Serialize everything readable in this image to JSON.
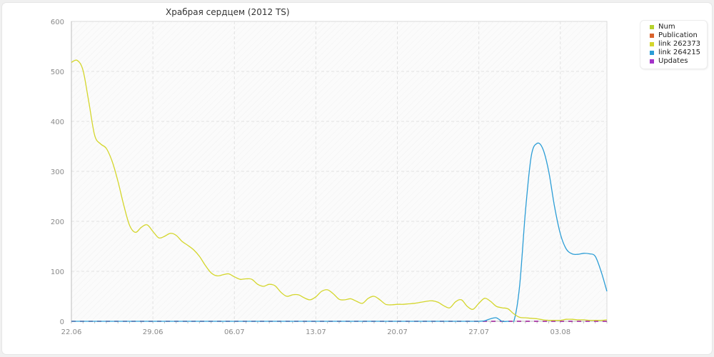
{
  "chart_data": {
    "type": "line",
    "title": "Храбрая сердцем (2012 TS)",
    "xlabel": "",
    "ylabel": "",
    "ylim": [
      0,
      600
    ],
    "yticks": [
      "0",
      "100",
      "200",
      "300",
      "400",
      "500",
      "600"
    ],
    "xticks": [
      "22.06",
      "29.06",
      "06.07",
      "13.07",
      "20.07",
      "27.07",
      "03.08"
    ],
    "grid": true,
    "legend_position": "top-right",
    "x_days": [
      0,
      0.5,
      1,
      1.5,
      2,
      2.5,
      3,
      3.5,
      4,
      4.5,
      5,
      5.5,
      6,
      6.5,
      7,
      7.5,
      8,
      8.5,
      9,
      9.5,
      10,
      10.5,
      11,
      11.5,
      12,
      12.5,
      13,
      13.5,
      14,
      14.5,
      15,
      15.5,
      16,
      16.5,
      17,
      17.5,
      18,
      18.5,
      19,
      19.5,
      20,
      20.5,
      21,
      21.5,
      22,
      22.5,
      23,
      23.5,
      24,
      24.5,
      25,
      25.5,
      26,
      26.5,
      27,
      27.5,
      28,
      28.5,
      29,
      29.5,
      30,
      30.5,
      31,
      31.5,
      32,
      32.5,
      33,
      33.5,
      34,
      34.5,
      35,
      35.5,
      36,
      36.5,
      37,
      37.5,
      38,
      38.5,
      39,
      39.5,
      40,
      40.5,
      41,
      41.5,
      42,
      42.5,
      43,
      43.5,
      44,
      44.5,
      45,
      45.5,
      46
    ],
    "series": [
      {
        "name": "Num",
        "color": "#b6d22e",
        "values": [
          0,
          0,
          0,
          0,
          0,
          0,
          0,
          0,
          0,
          0,
          0,
          0,
          0,
          0,
          0,
          0,
          0,
          0,
          0,
          0,
          0,
          0,
          0,
          0,
          0,
          0,
          0,
          0,
          0,
          0,
          0,
          0,
          0,
          0,
          0,
          0,
          0,
          0,
          0,
          0,
          0,
          0,
          0,
          0,
          0,
          0,
          0,
          0,
          0,
          0,
          0,
          0,
          0,
          0,
          0,
          0,
          0,
          0,
          0,
          0,
          0,
          0,
          0,
          0,
          0,
          0,
          0,
          0,
          0,
          0,
          0,
          0,
          0,
          0,
          0,
          0,
          0,
          0,
          0,
          0,
          0,
          0,
          0,
          0,
          0,
          0,
          0,
          0,
          0,
          0,
          0,
          0,
          0
        ]
      },
      {
        "name": "Publication",
        "color": "#d9622b",
        "values": [
          0,
          0,
          0,
          0,
          0,
          0,
          0,
          0,
          0,
          0,
          0,
          0,
          0,
          0,
          0,
          0,
          0,
          0,
          0,
          0,
          0,
          0,
          0,
          0,
          0,
          0,
          0,
          0,
          0,
          0,
          0,
          0,
          0,
          0,
          0,
          0,
          0,
          0,
          0,
          0,
          0,
          0,
          0,
          0,
          0,
          0,
          0,
          0,
          0,
          0,
          0,
          0,
          0,
          0,
          0,
          0,
          0,
          0,
          0,
          0,
          0,
          0,
          0,
          0,
          0,
          0,
          0,
          0,
          0,
          0,
          0,
          0,
          0,
          0,
          0,
          0,
          0,
          0,
          0,
          0,
          0,
          0,
          0,
          0,
          0,
          0,
          0,
          0,
          0,
          0,
          0,
          0,
          0
        ]
      },
      {
        "name": "link 262373",
        "color": "#d4d62c",
        "values": [
          518,
          522,
          502,
          438,
          372,
          355,
          346,
          320,
          280,
          232,
          192,
          178,
          188,
          193,
          180,
          167,
          170,
          176,
          172,
          160,
          152,
          143,
          130,
          112,
          97,
          91,
          93,
          95,
          89,
          84,
          85,
          84,
          74,
          70,
          74,
          71,
          58,
          50,
          53,
          53,
          47,
          43,
          49,
          60,
          63,
          55,
          44,
          43,
          45,
          40,
          36,
          46,
          50,
          43,
          34,
          33,
          34,
          34,
          35,
          36,
          38,
          40,
          41,
          38,
          31,
          27,
          39,
          43,
          30,
          24,
          36,
          46,
          40,
          30,
          27,
          25,
          15,
          8,
          7,
          6,
          5,
          3,
          2,
          2,
          2,
          4,
          4,
          3,
          3,
          2,
          2,
          2,
          3
        ]
      },
      {
        "name": "link 264215",
        "color": "#2b9dd6",
        "values": [
          0,
          0,
          0,
          0,
          0,
          0,
          0,
          0,
          0,
          0,
          0,
          0,
          0,
          0,
          0,
          0,
          0,
          0,
          0,
          0,
          0,
          0,
          0,
          0,
          0,
          0,
          0,
          0,
          0,
          0,
          0,
          0,
          0,
          0,
          0,
          0,
          0,
          0,
          0,
          0,
          0,
          0,
          0,
          0,
          0,
          0,
          0,
          0,
          0,
          0,
          0,
          0,
          0,
          0,
          0,
          0,
          0,
          0,
          0,
          0,
          0,
          0,
          0,
          0,
          0,
          0,
          0,
          0,
          0,
          0,
          0,
          1,
          5,
          7,
          0,
          0,
          0,
          70,
          220,
          330,
          356,
          345,
          300,
          230,
          175,
          145,
          135,
          134,
          136,
          135,
          130,
          100,
          60
        ]
      },
      {
        "name": "Updates",
        "color": "#a433c9",
        "values": [
          0,
          0,
          0,
          0,
          0,
          0,
          0,
          0,
          0,
          0,
          0,
          0,
          0,
          0,
          0,
          0,
          0,
          0,
          0,
          0,
          0,
          0,
          0,
          0,
          0,
          0,
          0,
          0,
          0,
          0,
          0,
          0,
          0,
          0,
          0,
          0,
          0,
          0,
          0,
          0,
          0,
          0,
          0,
          0,
          0,
          0,
          0,
          0,
          0,
          0,
          0,
          0,
          0,
          0,
          0,
          0,
          0,
          0,
          0,
          0,
          0,
          0,
          0,
          0,
          0,
          0,
          0,
          0,
          0,
          0,
          0,
          0,
          0,
          0,
          0,
          0,
          0,
          0,
          0,
          0,
          0,
          0,
          0,
          0,
          0,
          0,
          0,
          0,
          0,
          0,
          0,
          0,
          0
        ]
      }
    ]
  }
}
